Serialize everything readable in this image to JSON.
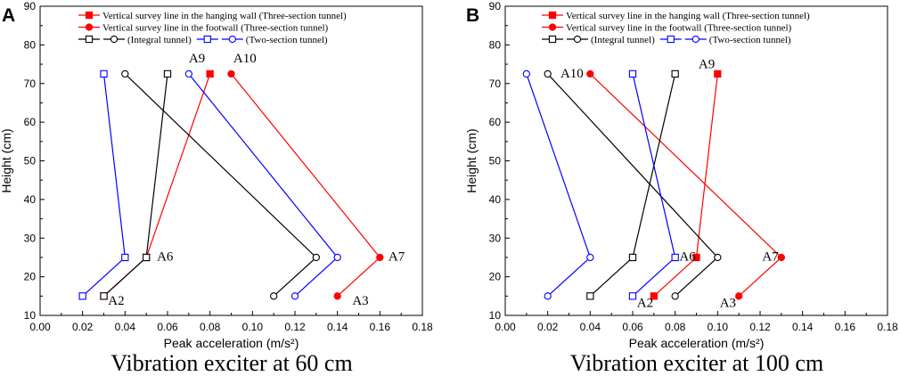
{
  "chart_data": [
    {
      "panel": "A",
      "type": "line",
      "caption": "Vibration exciter at 60 cm",
      "xlabel": "Peak acceleration (m/s²)",
      "ylabel": "Height (cm)",
      "xlim": [
        0,
        0.18
      ],
      "ylim": [
        10,
        90
      ],
      "x_ticks": [
        "0.00",
        "0.02",
        "0.04",
        "0.06",
        "0.08",
        "0.10",
        "0.12",
        "0.14",
        "0.16",
        "0.18"
      ],
      "y_ticks": [
        "10",
        "20",
        "30",
        "40",
        "50",
        "60",
        "70",
        "80",
        "90"
      ],
      "series": [
        {
          "key": "hw3",
          "name": "Vertical survey line in the hanging wall (Three-section tunnel)",
          "color": "#ff0000",
          "marker": "square",
          "filled": true,
          "points": [
            {
              "x": 0.03,
              "y": 15
            },
            {
              "x": 0.05,
              "y": 25
            },
            {
              "x": 0.08,
              "y": 72.5
            }
          ]
        },
        {
          "key": "fw3",
          "name": "Vertical survey line in the footwall (Three-section tunnel)",
          "color": "#ff0000",
          "marker": "circle",
          "filled": true,
          "points": [
            {
              "x": 0.14,
              "y": 15
            },
            {
              "x": 0.16,
              "y": 25
            },
            {
              "x": 0.09,
              "y": 72.5
            }
          ]
        },
        {
          "key": "int_sq",
          "name": "",
          "color": "#000000",
          "marker": "square",
          "filled": false,
          "points": [
            {
              "x": 0.03,
              "y": 15
            },
            {
              "x": 0.05,
              "y": 25
            },
            {
              "x": 0.06,
              "y": 72.5
            }
          ]
        },
        {
          "key": "int_ci",
          "name": "(Integral tunnel)",
          "color": "#000000",
          "marker": "circle",
          "filled": false,
          "points": [
            {
              "x": 0.11,
              "y": 15
            },
            {
              "x": 0.13,
              "y": 25
            },
            {
              "x": 0.04,
              "y": 72.5
            }
          ]
        },
        {
          "key": "two_sq",
          "name": "",
          "color": "#0000ff",
          "marker": "square",
          "filled": false,
          "points": [
            {
              "x": 0.02,
              "y": 15
            },
            {
              "x": 0.04,
              "y": 25
            },
            {
              "x": 0.03,
              "y": 72.5
            }
          ]
        },
        {
          "key": "two_ci",
          "name": "(Two-section tunnel)",
          "color": "#0000ff",
          "marker": "circle",
          "filled": false,
          "points": [
            {
              "x": 0.12,
              "y": 15
            },
            {
              "x": 0.14,
              "y": 25
            },
            {
              "x": 0.07,
              "y": 72.5
            }
          ]
        }
      ],
      "annotations": [
        {
          "text": "A2",
          "x": 0.032,
          "y": 12.8
        },
        {
          "text": "A6",
          "x": 0.055,
          "y": 24.2
        },
        {
          "text": "A9",
          "x": 0.07,
          "y": 75.5
        },
        {
          "text": "A10",
          "x": 0.091,
          "y": 75.5
        },
        {
          "text": "A7",
          "x": 0.164,
          "y": 24.2
        },
        {
          "text": "A3",
          "x": 0.147,
          "y": 12.8
        }
      ]
    },
    {
      "panel": "B",
      "type": "line",
      "caption": "Vibration exciter at 100 cm",
      "xlabel": "Peak acceleration (m/s²)",
      "ylabel": "Height (cm)",
      "xlim": [
        0,
        0.18
      ],
      "ylim": [
        10,
        90
      ],
      "x_ticks": [
        "0.00",
        "0.02",
        "0.04",
        "0.06",
        "0.08",
        "0.10",
        "0.12",
        "0.14",
        "0.16",
        "0.18"
      ],
      "y_ticks": [
        "10",
        "20",
        "30",
        "40",
        "50",
        "60",
        "70",
        "80",
        "90"
      ],
      "series": [
        {
          "key": "hw3",
          "name": "Vertical survey line in the hanging wall (Three-section tunnel)",
          "color": "#ff0000",
          "marker": "square",
          "filled": true,
          "points": [
            {
              "x": 0.07,
              "y": 15
            },
            {
              "x": 0.09,
              "y": 25
            },
            {
              "x": 0.1,
              "y": 72.5
            }
          ]
        },
        {
          "key": "fw3",
          "name": "Vertical survey line in the footwall (Three-section tunnel)",
          "color": "#ff0000",
          "marker": "circle",
          "filled": true,
          "points": [
            {
              "x": 0.11,
              "y": 15
            },
            {
              "x": 0.13,
              "y": 25
            },
            {
              "x": 0.04,
              "y": 72.5
            }
          ]
        },
        {
          "key": "int_sq",
          "name": "",
          "color": "#000000",
          "marker": "square",
          "filled": false,
          "points": [
            {
              "x": 0.04,
              "y": 15
            },
            {
              "x": 0.06,
              "y": 25
            },
            {
              "x": 0.08,
              "y": 72.5
            }
          ]
        },
        {
          "key": "int_ci",
          "name": "(Integral tunnel)",
          "color": "#000000",
          "marker": "circle",
          "filled": false,
          "points": [
            {
              "x": 0.08,
              "y": 15
            },
            {
              "x": 0.1,
              "y": 25
            },
            {
              "x": 0.02,
              "y": 72.5
            }
          ]
        },
        {
          "key": "two_sq",
          "name": "",
          "color": "#0000ff",
          "marker": "square",
          "filled": false,
          "points": [
            {
              "x": 0.06,
              "y": 15
            },
            {
              "x": 0.08,
              "y": 25
            },
            {
              "x": 0.06,
              "y": 72.5
            }
          ]
        },
        {
          "key": "two_ci",
          "name": "(Two-section tunnel)",
          "color": "#0000ff",
          "marker": "circle",
          "filled": false,
          "points": [
            {
              "x": 0.02,
              "y": 15
            },
            {
              "x": 0.04,
              "y": 25
            },
            {
              "x": 0.01,
              "y": 72.5
            }
          ]
        }
      ],
      "annotations": [
        {
          "text": "A10",
          "x": 0.026,
          "y": 71.5
        },
        {
          "text": "A9",
          "x": 0.091,
          "y": 74.0
        },
        {
          "text": "A6",
          "x": 0.082,
          "y": 24.2
        },
        {
          "text": "A7",
          "x": 0.121,
          "y": 24.2
        },
        {
          "text": "A2",
          "x": 0.062,
          "y": 12.2
        },
        {
          "text": "A3",
          "x": 0.101,
          "y": 12.2
        }
      ]
    }
  ]
}
